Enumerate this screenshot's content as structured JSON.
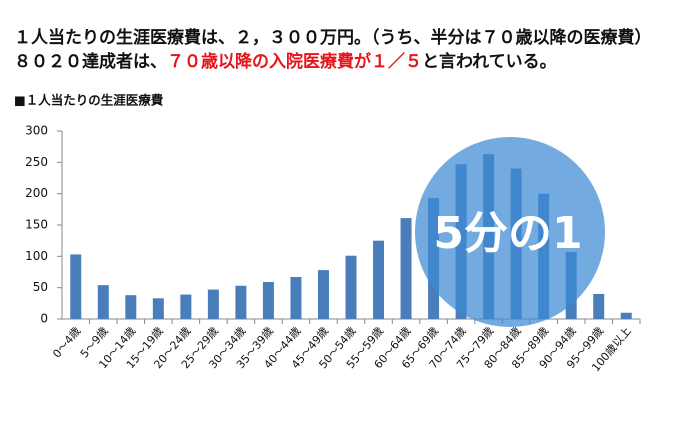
{
  "header": {
    "line1": "１人当たりの生涯医療費は、２，３００万円。（うち、半分は７０歳以降の医療費）",
    "line2": [
      "８０２０達成者は、",
      "７０歳以降の入院医療費が１／５",
      "と言われている。"
    ]
  },
  "chart_data": {
    "type": "bar",
    "title": "■１人当たりの生涯医療費",
    "categories": [
      "0～4歳",
      "5～9歳",
      "10～14歳",
      "15～19歳",
      "20～24歳",
      "25～29歳",
      "30～34歳",
      "35～39歳",
      "40～44歳",
      "45～49歳",
      "50～54歳",
      "55～59歳",
      "60～64歳",
      "65～69歳",
      "70～74歳",
      "75～79歳",
      "80～84歳",
      "85～89歳",
      "90～94歳",
      "95～99歳",
      "100歳以上"
    ],
    "values": [
      103,
      54,
      38,
      33,
      39,
      47,
      53,
      59,
      67,
      78,
      101,
      125,
      161,
      193,
      247,
      263,
      240,
      200,
      107,
      40,
      10
    ],
    "color": "#4a7ebb",
    "ylim": [
      0,
      300
    ],
    "yticks": [
      0,
      50,
      100,
      150,
      200,
      250,
      300
    ],
    "grid": false,
    "annotation": "5分の1",
    "annotation_color": "#3d8bd4"
  }
}
